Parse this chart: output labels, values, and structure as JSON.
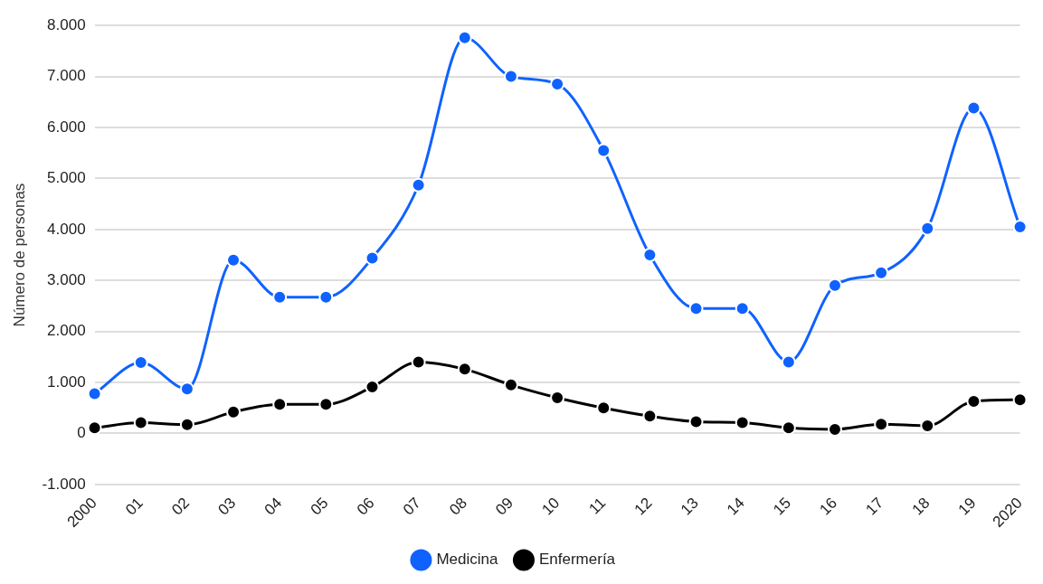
{
  "chart_data": {
    "type": "line",
    "ylabel": "Número de personas",
    "categories": [
      "2000",
      "01",
      "02",
      "03",
      "04",
      "05",
      "06",
      "07",
      "08",
      "09",
      "10",
      "11",
      "12",
      "13",
      "14",
      "15",
      "16",
      "17",
      "18",
      "19",
      "2020"
    ],
    "series": [
      {
        "name": "Medicina",
        "color": "#0f62fe",
        "values": [
          780,
          1390,
          870,
          3400,
          2670,
          2670,
          3440,
          4870,
          7760,
          7000,
          6850,
          5550,
          3500,
          2450,
          2450,
          1400,
          2900,
          3150,
          4020,
          6380,
          4050
        ]
      },
      {
        "name": "Enfermería",
        "color": "#000000",
        "values": [
          110,
          210,
          170,
          420,
          570,
          570,
          910,
          1400,
          1260,
          950,
          700,
          500,
          340,
          230,
          210,
          110,
          80,
          180,
          150,
          630,
          660
        ]
      }
    ],
    "ylim": [
      -1000,
      8000
    ],
    "yticks": [
      {
        "value": -1000,
        "label": "-1.000"
      },
      {
        "value": 0,
        "label": "0"
      },
      {
        "value": 1000,
        "label": "1.000"
      },
      {
        "value": 2000,
        "label": "2.000"
      },
      {
        "value": 3000,
        "label": "3.000"
      },
      {
        "value": 4000,
        "label": "4.000"
      },
      {
        "value": 5000,
        "label": "5.000"
      },
      {
        "value": 6000,
        "label": "6.000"
      },
      {
        "value": 7000,
        "label": "7.000"
      },
      {
        "value": 8000,
        "label": "8.000"
      }
    ],
    "grid": "y",
    "legend": "bottom",
    "marker": "circle",
    "line_style": "solid"
  }
}
